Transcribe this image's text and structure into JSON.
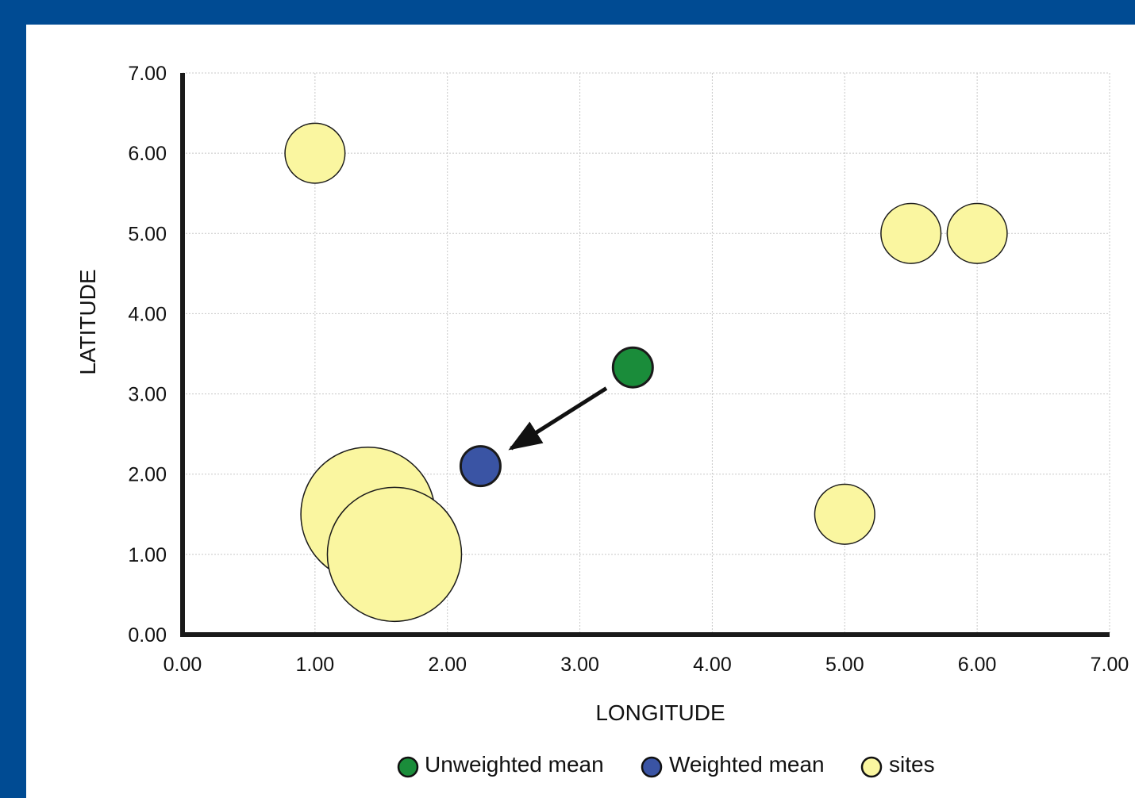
{
  "chart_data": {
    "type": "scatter",
    "title": "",
    "xlabel": "LONGITUDE",
    "ylabel": "LATITUDE",
    "xlim": [
      0,
      7
    ],
    "ylim": [
      0,
      7
    ],
    "x_ticks": [
      "0.00",
      "1.00",
      "2.00",
      "3.00",
      "4.00",
      "5.00",
      "6.00",
      "7.00"
    ],
    "y_ticks": [
      "0.00",
      "1.00",
      "2.00",
      "3.00",
      "4.00",
      "5.00",
      "6.00",
      "7.00"
    ],
    "grid": true,
    "legend_position": "bottom",
    "series": [
      {
        "name": "Unweighted mean",
        "color": "#1a8c3a",
        "points": [
          {
            "x": 3.4,
            "y": 3.33,
            "weight": 1
          }
        ]
      },
      {
        "name": "Weighted mean",
        "color": "#3a54a4",
        "points": [
          {
            "x": 2.25,
            "y": 2.1,
            "weight": 1
          }
        ]
      },
      {
        "name": "sites",
        "color": "#faf6a0",
        "points": [
          {
            "x": 1.0,
            "y": 6.0,
            "weight": 1
          },
          {
            "x": 5.5,
            "y": 5.0,
            "weight": 1
          },
          {
            "x": 6.0,
            "y": 5.0,
            "weight": 1
          },
          {
            "x": 5.0,
            "y": 1.5,
            "weight": 1
          },
          {
            "x": 1.4,
            "y": 1.5,
            "weight": 5
          },
          {
            "x": 1.6,
            "y": 1.0,
            "weight": 5
          }
        ]
      }
    ],
    "annotations": [
      {
        "type": "arrow",
        "from": {
          "x": 3.2,
          "y": 3.07
        },
        "to": {
          "x": 2.48,
          "y": 2.32
        }
      }
    ]
  }
}
